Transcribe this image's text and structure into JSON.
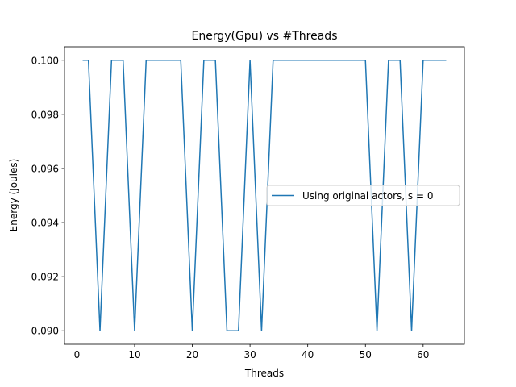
{
  "chart_data": {
    "type": "line",
    "title": "Energy(Gpu) vs #Threads",
    "xlabel": "Threads",
    "ylabel": "Energy (Joules)",
    "xlim": [
      -2.15,
      67.15
    ],
    "ylim": [
      0.0895,
      0.1005
    ],
    "xticks": [
      0,
      10,
      20,
      30,
      40,
      50,
      60
    ],
    "xtick_labels": [
      "0",
      "10",
      "20",
      "30",
      "40",
      "50",
      "60"
    ],
    "yticks": [
      0.09,
      0.092,
      0.094,
      0.096,
      0.098,
      0.1
    ],
    "ytick_labels": [
      "0.090",
      "0.092",
      "0.094",
      "0.096",
      "0.098",
      "0.100"
    ],
    "grid": false,
    "legend_position": "center-right",
    "series": [
      {
        "name": "Using original actors, s = 0",
        "color": "#1f77b4",
        "x": [
          1,
          2,
          3,
          4,
          5,
          6,
          7,
          8,
          9,
          10,
          11,
          12,
          13,
          14,
          15,
          16,
          17,
          18,
          19,
          20,
          21,
          22,
          23,
          24,
          25,
          26,
          27,
          28,
          29,
          30,
          31,
          32,
          33,
          34,
          35,
          36,
          37,
          38,
          39,
          40,
          41,
          42,
          43,
          44,
          45,
          46,
          47,
          48,
          49,
          50,
          51,
          52,
          53,
          54,
          55,
          56,
          57,
          58,
          59,
          60,
          61,
          62,
          63,
          64
        ],
        "y": [
          0.1,
          0.1,
          0.095,
          0.09,
          0.095,
          0.1,
          0.1,
          0.1,
          0.095,
          0.09,
          0.095,
          0.1,
          0.1,
          0.1,
          0.1,
          0.1,
          0.1,
          0.1,
          0.095,
          0.09,
          0.095,
          0.1,
          0.1,
          0.1,
          0.095,
          0.09,
          0.09,
          0.09,
          0.095,
          0.1,
          0.095,
          0.09,
          0.095,
          0.1,
          0.1,
          0.1,
          0.1,
          0.1,
          0.1,
          0.1,
          0.1,
          0.1,
          0.1,
          0.1,
          0.1,
          0.1,
          0.1,
          0.1,
          0.1,
          0.1,
          0.095,
          0.09,
          0.095,
          0.1,
          0.1,
          0.1,
          0.095,
          0.09,
          0.095,
          0.1,
          0.1,
          0.1,
          0.1,
          0.1
        ]
      }
    ]
  }
}
